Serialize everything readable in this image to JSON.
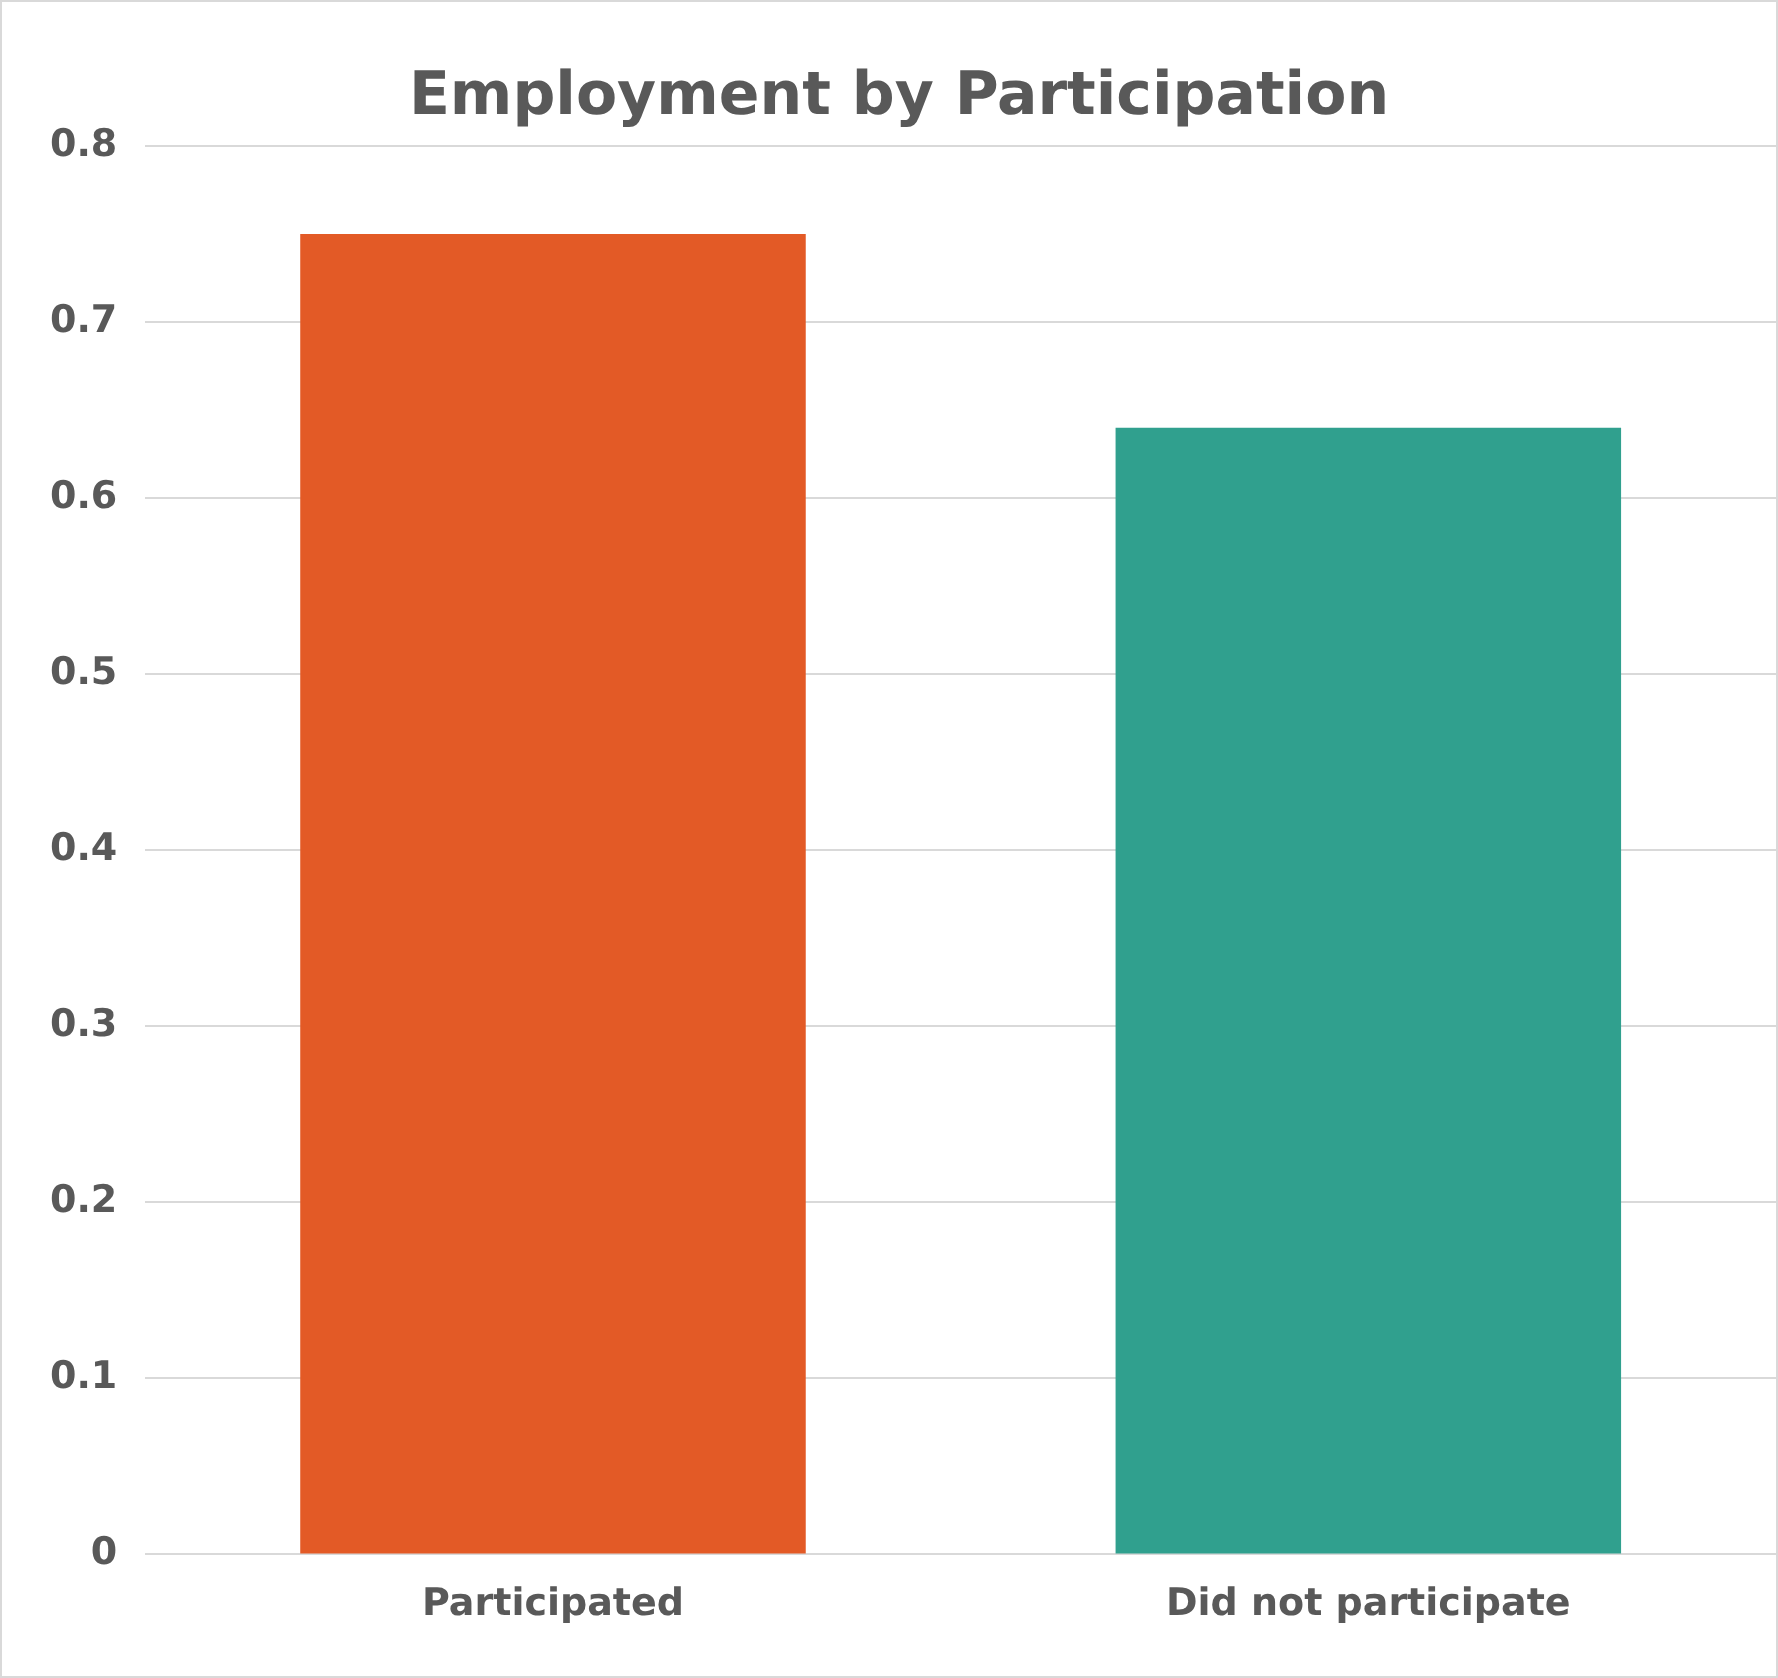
{
  "chart_data": {
    "type": "bar",
    "title": "Employment by Participation",
    "categories": [
      "Participated",
      "Did not participate"
    ],
    "values": [
      0.75,
      0.64
    ],
    "colors": [
      "#e35a26",
      "#30a08e"
    ],
    "ylim": [
      0,
      0.8
    ],
    "yticks": [
      0,
      0.1,
      0.2,
      0.3,
      0.4,
      0.5,
      0.6,
      0.7,
      0.8
    ],
    "grid": "y"
  }
}
